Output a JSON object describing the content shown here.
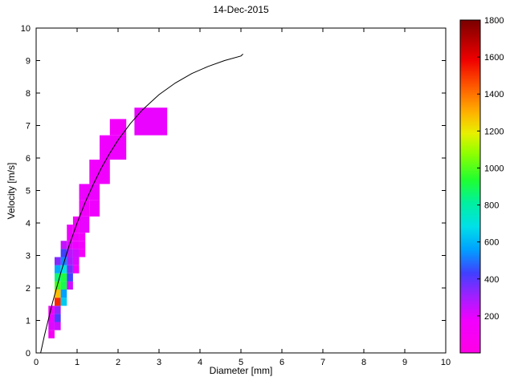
{
  "figure": {
    "background": "#ffffff"
  },
  "chart_data": {
    "type": "heatmap",
    "title": "14-Dec-2015",
    "xlabel": "Diameter [mm]",
    "ylabel": "Velocity [m/s]",
    "xlim": [
      0,
      10
    ],
    "ylim": [
      0,
      10
    ],
    "xticks": [
      0,
      1,
      2,
      3,
      4,
      5,
      6,
      7,
      8,
      9,
      10
    ],
    "yticks": [
      0,
      1,
      2,
      3,
      4,
      5,
      6,
      7,
      8,
      9,
      10
    ],
    "grid": false,
    "legend": "colorbar-right",
    "colorbar": {
      "min": 0,
      "max": 1800,
      "ticks": [
        200,
        400,
        600,
        800,
        1000,
        1200,
        1400,
        1600,
        1800
      ],
      "colormap": [
        {
          "t": 0.0,
          "color": "#ff00e6"
        },
        {
          "t": 0.1,
          "color": "#f000ff"
        },
        {
          "t": 0.17,
          "color": "#a020ff"
        },
        {
          "t": 0.24,
          "color": "#4040ff"
        },
        {
          "t": 0.31,
          "color": "#00a0ff"
        },
        {
          "t": 0.38,
          "color": "#00e0e8"
        },
        {
          "t": 0.45,
          "color": "#00f0a0"
        },
        {
          "t": 0.52,
          "color": "#20ff30"
        },
        {
          "t": 0.6,
          "color": "#90ff00"
        },
        {
          "t": 0.66,
          "color": "#e8f000"
        },
        {
          "t": 0.72,
          "color": "#ffb400"
        },
        {
          "t": 0.8,
          "color": "#ff5a00"
        },
        {
          "t": 0.88,
          "color": "#f00000"
        },
        {
          "t": 1.0,
          "color": "#7a0000"
        }
      ]
    },
    "cells": [
      [
        0.3,
        0.45,
        0.45,
        0.7,
        110
      ],
      [
        0.3,
        0.45,
        0.7,
        0.95,
        210
      ],
      [
        0.45,
        0.6,
        0.7,
        0.95,
        240
      ],
      [
        0.3,
        0.45,
        0.95,
        1.2,
        190
      ],
      [
        0.45,
        0.6,
        0.95,
        1.2,
        420
      ],
      [
        0.3,
        0.45,
        1.2,
        1.45,
        150
      ],
      [
        0.45,
        0.6,
        1.2,
        1.45,
        320
      ],
      [
        0.45,
        0.6,
        1.45,
        1.7,
        1520
      ],
      [
        0.6,
        0.75,
        1.45,
        1.7,
        640
      ],
      [
        0.45,
        0.6,
        1.7,
        1.95,
        1280
      ],
      [
        0.6,
        0.75,
        1.7,
        1.95,
        560
      ],
      [
        0.45,
        0.6,
        1.95,
        2.2,
        980
      ],
      [
        0.6,
        0.75,
        1.95,
        2.2,
        900
      ],
      [
        0.75,
        0.9,
        1.95,
        2.2,
        230
      ],
      [
        0.45,
        0.6,
        2.2,
        2.45,
        860
      ],
      [
        0.6,
        0.75,
        2.2,
        2.45,
        920
      ],
      [
        0.75,
        0.9,
        2.2,
        2.45,
        440
      ],
      [
        0.45,
        0.6,
        2.45,
        2.7,
        580
      ],
      [
        0.6,
        0.75,
        2.45,
        2.7,
        700
      ],
      [
        0.75,
        0.9,
        2.45,
        2.7,
        360
      ],
      [
        0.9,
        1.05,
        2.45,
        2.7,
        150
      ],
      [
        0.45,
        0.6,
        2.7,
        2.95,
        340
      ],
      [
        0.6,
        0.75,
        2.7,
        2.95,
        520
      ],
      [
        0.75,
        0.9,
        2.7,
        2.95,
        290
      ],
      [
        0.9,
        1.05,
        2.7,
        2.95,
        210
      ],
      [
        0.6,
        0.75,
        2.95,
        3.2,
        430
      ],
      [
        0.75,
        0.9,
        2.95,
        3.2,
        260
      ],
      [
        0.9,
        1.05,
        2.95,
        3.2,
        230
      ],
      [
        1.05,
        1.2,
        2.95,
        3.2,
        140
      ],
      [
        0.6,
        0.75,
        3.2,
        3.45,
        250
      ],
      [
        0.75,
        0.9,
        3.2,
        3.45,
        200
      ],
      [
        0.9,
        1.05,
        3.2,
        3.45,
        180
      ],
      [
        1.05,
        1.2,
        3.2,
        3.45,
        160
      ],
      [
        0.75,
        0.9,
        3.45,
        3.95,
        180
      ],
      [
        0.9,
        1.05,
        3.45,
        3.7,
        170
      ],
      [
        1.05,
        1.2,
        3.45,
        3.7,
        150
      ],
      [
        0.9,
        1.05,
        3.7,
        4.2,
        140
      ],
      [
        1.05,
        1.3,
        3.7,
        4.2,
        190
      ],
      [
        1.05,
        1.3,
        4.2,
        4.7,
        160
      ],
      [
        1.3,
        1.55,
        4.2,
        4.7,
        180
      ],
      [
        1.05,
        1.55,
        4.7,
        5.2,
        185
      ],
      [
        1.3,
        1.8,
        5.2,
        5.95,
        170
      ],
      [
        1.55,
        2.2,
        5.95,
        6.7,
        180
      ],
      [
        1.8,
        2.2,
        6.7,
        7.2,
        150
      ],
      [
        2.4,
        3.2,
        6.7,
        7.55,
        190
      ]
    ],
    "curve": {
      "name": "terminal-velocity-curve",
      "color": "#000000",
      "points": [
        [
          0.11,
          0.0
        ],
        [
          0.2,
          0.52
        ],
        [
          0.4,
          1.55
        ],
        [
          0.6,
          2.46
        ],
        [
          0.8,
          3.28
        ],
        [
          1.0,
          4.0
        ],
        [
          1.2,
          4.64
        ],
        [
          1.4,
          5.2
        ],
        [
          1.6,
          5.71
        ],
        [
          1.8,
          6.15
        ],
        [
          2.0,
          6.55
        ],
        [
          2.3,
          7.06
        ],
        [
          2.6,
          7.49
        ],
        [
          3.0,
          7.95
        ],
        [
          3.4,
          8.31
        ],
        [
          3.8,
          8.6
        ],
        [
          4.2,
          8.82
        ],
        [
          4.6,
          9.0
        ],
        [
          5.0,
          9.14
        ],
        [
          5.05,
          9.2
        ]
      ]
    }
  }
}
